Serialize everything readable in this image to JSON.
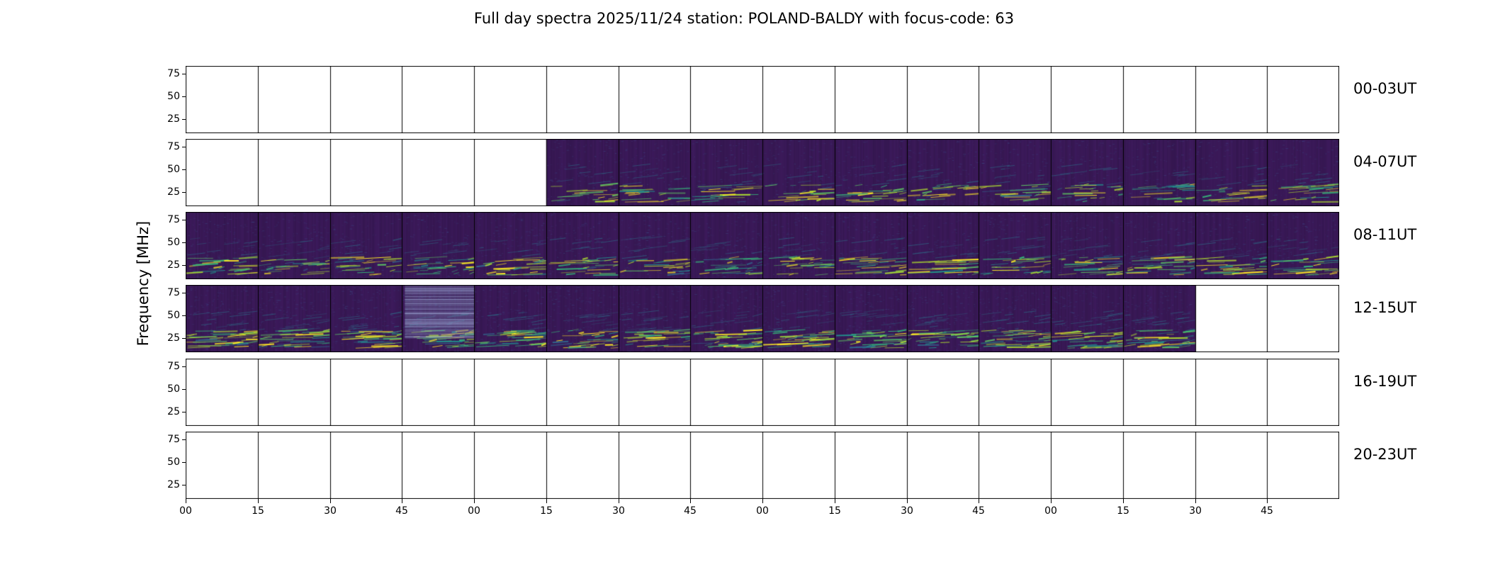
{
  "chart_data": {
    "type": "heatmap",
    "title": "Full day spectra 2025/11/24 station: POLAND-BALDY with focus-code: 63",
    "ylabel": "Frequency [MHz]",
    "y_ticks": [
      "75",
      "50",
      "25"
    ],
    "x_tick_labels": [
      "00",
      "15",
      "30",
      "45",
      "00",
      "15",
      "30",
      "45",
      "00",
      "15",
      "30",
      "45",
      "00",
      "15",
      "30",
      "45"
    ],
    "segments_per_row": 16,
    "minutes_per_segment": 15,
    "colormap": "viridis",
    "grid": false,
    "legend": "none",
    "colors": {
      "background": "#3c1a5b",
      "border": "#000000",
      "empty": "#ffffff",
      "streak_palette": [
        "#31688e",
        "#21918c",
        "#35b779",
        "#5ec962",
        "#addc30",
        "#fde725"
      ]
    },
    "rows": [
      {
        "label": "00-03UT",
        "filled": [],
        "activity": 0
      },
      {
        "label": "04-07UT",
        "filled": [
          5,
          6,
          7,
          8,
          9,
          10,
          11,
          12,
          13,
          14,
          15
        ],
        "activity": 0.9
      },
      {
        "label": "08-11UT",
        "filled": [
          0,
          1,
          2,
          3,
          4,
          5,
          6,
          7,
          8,
          9,
          10,
          11,
          12,
          13,
          14,
          15
        ],
        "activity": 1.1
      },
      {
        "label": "12-15UT",
        "filled": [
          0,
          1,
          2,
          3,
          4,
          5,
          6,
          7,
          8,
          9,
          10,
          11,
          12,
          13
        ],
        "activity": 1.4,
        "light_band": {
          "start_frac": 0.19,
          "end_frac": 0.25
        }
      },
      {
        "label": "16-19UT",
        "filled": [],
        "activity": 0
      },
      {
        "label": "20-23UT",
        "filled": [],
        "activity": 0
      }
    ]
  }
}
